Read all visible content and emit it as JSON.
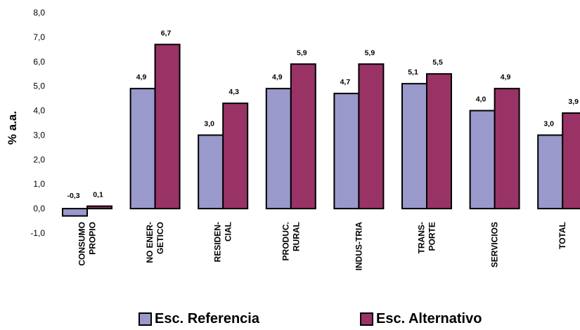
{
  "chart_data": {
    "type": "bar",
    "ylabel": "% a.a.",
    "ylim": [
      -1.0,
      8.0
    ],
    "yticks": [
      "8,0",
      "7,0",
      "6,0",
      "5,0",
      "4,0",
      "3,0",
      "2,0",
      "1,0",
      "0,0",
      "-1,0"
    ],
    "categories": [
      [
        "CONSUMO",
        "PROPIO"
      ],
      [
        "NO ENER-",
        "GETICO"
      ],
      [
        "RESIDEN-",
        "CIAL"
      ],
      [
        "PRODUC.",
        "RURAL"
      ],
      [
        "INDUS-TRIA"
      ],
      [
        "TRANS-",
        "PORTE"
      ],
      [
        "SERVICIOS"
      ],
      [
        "TOTAL"
      ]
    ],
    "series": [
      {
        "name": "Esc. Referencia",
        "color": "#9999cc",
        "values": [
          -0.3,
          4.9,
          3.0,
          4.9,
          4.7,
          5.1,
          4.0,
          3.0
        ],
        "labels": [
          "-0,3",
          "4,9",
          "3,0",
          "4,9",
          "4,7",
          "5,1",
          "4,0",
          "3,0"
        ]
      },
      {
        "name": "Esc. Alternativo",
        "color": "#993366",
        "values": [
          0.1,
          6.7,
          4.3,
          5.9,
          5.9,
          5.5,
          4.9,
          3.9
        ],
        "labels": [
          "0,1",
          "6,7",
          "4,3",
          "5,9",
          "5,9",
          "5,5",
          "4,9",
          "3,9"
        ]
      }
    ],
    "grid": false,
    "legend": "bottom"
  }
}
